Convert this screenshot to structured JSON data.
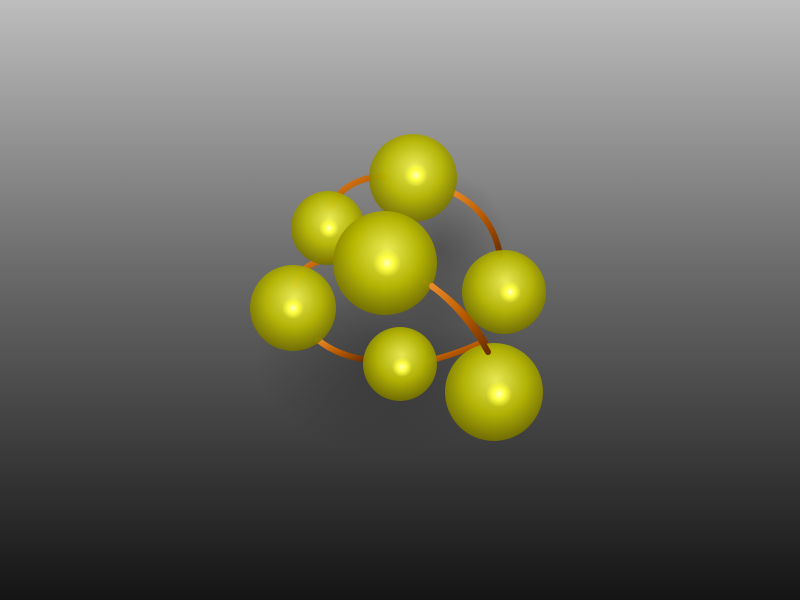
{
  "scene": {
    "description_name": "molecule-render",
    "colors": {
      "background_top": "#bdbdbd",
      "background_mid": "#6a6a6a",
      "background_bottom": "#141414",
      "sphere_base": "#b8b800",
      "sphere_light": "#f4f455",
      "sphere_dark": "#6f6a00",
      "highlight": "#ffff40",
      "bond": "#b85a00",
      "bond_dark": "#6a2e00",
      "bond_light": "#e88a2a",
      "shadow": "#000000"
    }
  }
}
